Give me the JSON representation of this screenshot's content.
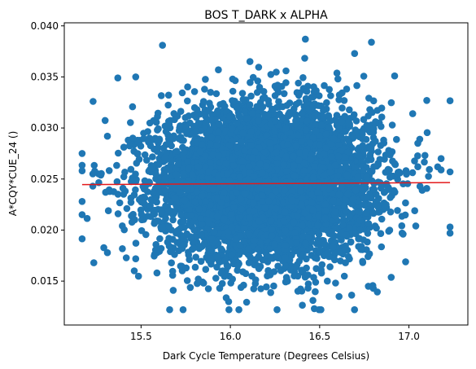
{
  "chart_data": {
    "type": "scatter",
    "title": "BOS T_DARK x ALPHA",
    "xlabel": "Dark Cycle Temperature (Degrees Celsius)",
    "ylabel": "A*CQY*CUE_24 ()",
    "xlim": [
      15.07,
      17.33
    ],
    "ylim": [
      0.0107,
      0.0403
    ],
    "xticks": [
      15.5,
      16.0,
      16.5,
      17.0
    ],
    "xtick_labels": [
      "15.5",
      "16.0",
      "16.5",
      "17.0"
    ],
    "yticks": [
      0.015,
      0.02,
      0.025,
      0.03,
      0.035,
      0.04
    ],
    "ytick_labels": [
      "0.015",
      "0.020",
      "0.025",
      "0.030",
      "0.035",
      "0.040"
    ],
    "grid": false,
    "series": [
      {
        "kind": "points",
        "color": "#1f77b4",
        "x_mean": 16.2,
        "x_sd": 0.3,
        "y_mean": 0.0246,
        "y_sd": 0.0037,
        "x_range": [
          15.17,
          17.23
        ],
        "y_range": [
          0.0122,
          0.0387
        ],
        "count": 6000,
        "outliers": [
          [
            15.17,
            0.0275
          ],
          [
            15.17,
            0.0258
          ],
          [
            15.17,
            0.0228
          ],
          [
            15.17,
            0.0215
          ],
          [
            15.23,
            0.0255
          ],
          [
            15.23,
            0.0243
          ],
          [
            15.37,
            0.0349
          ],
          [
            15.62,
            0.0381
          ],
          [
            15.66,
            0.0122
          ],
          [
            15.68,
            0.0141
          ],
          [
            16.42,
            0.0387
          ],
          [
            16.47,
            0.0123
          ],
          [
            16.79,
            0.0384
          ],
          [
            16.8,
            0.0143
          ],
          [
            17.05,
            0.0285
          ],
          [
            17.05,
            0.0262
          ],
          [
            17.1,
            0.0327
          ],
          [
            17.18,
            0.027
          ],
          [
            17.23,
            0.0257
          ],
          [
            17.23,
            0.0203
          ],
          [
            17.23,
            0.0197
          ],
          [
            16.92,
            0.0351
          ],
          [
            16.11,
            0.0365
          ],
          [
            15.47,
            0.035
          ]
        ]
      },
      {
        "kind": "regression-line",
        "color": "#e31a1c",
        "x": [
          15.17,
          17.23
        ],
        "y": [
          0.02445,
          0.02465
        ]
      }
    ]
  }
}
